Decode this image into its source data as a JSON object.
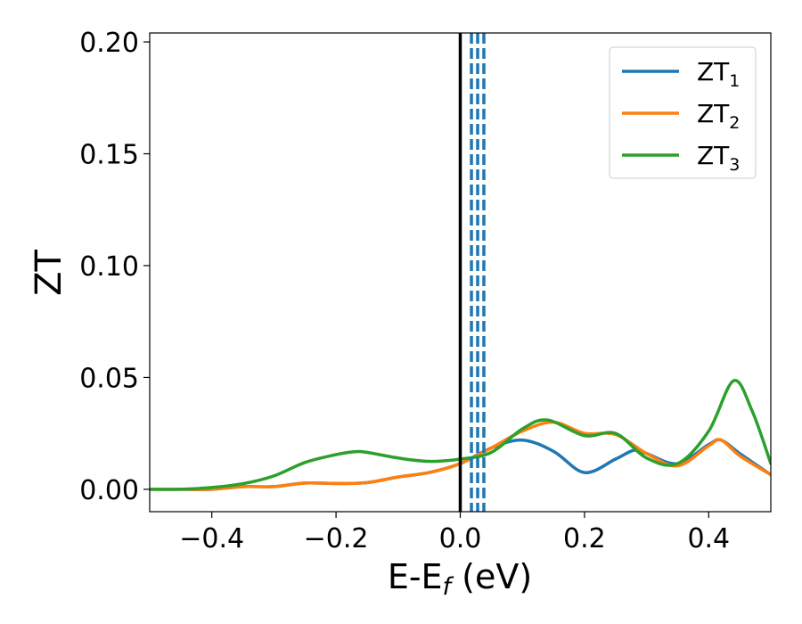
{
  "chart_data": {
    "type": "line",
    "title": "",
    "xlabel_main": "E-E",
    "xlabel_sub": "f",
    "xlabel_unit": " (eV)",
    "ylabel": "ZT",
    "xlim": [
      -0.5,
      0.5
    ],
    "ylim": [
      -0.01,
      0.204
    ],
    "xticks": [
      -0.4,
      -0.2,
      0.0,
      0.2,
      0.4
    ],
    "xtick_labels": [
      "−0.4",
      "−0.2",
      "0.0",
      "0.2",
      "0.4"
    ],
    "yticks": [
      0.0,
      0.05,
      0.1,
      0.15,
      0.2
    ],
    "ytick_labels": [
      "0.00",
      "0.05",
      "0.10",
      "0.15",
      "0.20"
    ],
    "grid": false,
    "legend_position": "top-right",
    "vertical_lines": [
      {
        "x": 0.0,
        "style": "solid",
        "color": "#000000"
      },
      {
        "x": 0.018,
        "style": "dashed",
        "color": "#1f77b4"
      },
      {
        "x": 0.028,
        "style": "dashed",
        "color": "#1f77b4"
      },
      {
        "x": 0.038,
        "style": "dashed",
        "color": "#1f77b4"
      }
    ],
    "series": [
      {
        "name": "ZT",
        "subscript": "1",
        "color": "#1f77b4",
        "x": [
          -0.5,
          -0.45,
          -0.4,
          -0.35,
          -0.3,
          -0.25,
          -0.2,
          -0.15,
          -0.1,
          -0.05,
          0.0,
          0.05,
          0.1,
          0.15,
          0.2,
          0.25,
          0.28,
          0.3,
          0.35,
          0.4,
          0.42,
          0.45,
          0.5
        ],
        "y": [
          0.0,
          0.0,
          0.0,
          0.0012,
          0.0012,
          0.0028,
          0.0026,
          0.003,
          0.0055,
          0.0075,
          0.0115,
          0.0185,
          0.022,
          0.017,
          0.0075,
          0.0135,
          0.0175,
          0.016,
          0.0115,
          0.02,
          0.022,
          0.016,
          0.0065
        ]
      },
      {
        "name": "ZT",
        "subscript": "2",
        "color": "#ff7f0e",
        "x": [
          -0.5,
          -0.45,
          -0.4,
          -0.35,
          -0.3,
          -0.25,
          -0.2,
          -0.15,
          -0.1,
          -0.05,
          0.0,
          0.05,
          0.1,
          0.15,
          0.2,
          0.25,
          0.3,
          0.35,
          0.4,
          0.42,
          0.45,
          0.5
        ],
        "y": [
          0.0,
          0.0,
          0.0,
          0.0012,
          0.0012,
          0.0028,
          0.0026,
          0.003,
          0.0055,
          0.0075,
          0.0115,
          0.0185,
          0.026,
          0.03,
          0.025,
          0.0245,
          0.016,
          0.0105,
          0.0195,
          0.022,
          0.015,
          0.0065
        ]
      },
      {
        "name": "ZT",
        "subscript": "3",
        "color": "#2ca02c",
        "x": [
          -0.5,
          -0.45,
          -0.4,
          -0.35,
          -0.3,
          -0.25,
          -0.2,
          -0.17,
          -0.15,
          -0.1,
          -0.05,
          0.0,
          0.05,
          0.1,
          0.14,
          0.2,
          0.25,
          0.3,
          0.35,
          0.4,
          0.44,
          0.47,
          0.5
        ],
        "y": [
          0.0,
          0.0,
          0.0008,
          0.0025,
          0.006,
          0.012,
          0.0155,
          0.0168,
          0.0165,
          0.014,
          0.0125,
          0.0135,
          0.0165,
          0.027,
          0.031,
          0.024,
          0.025,
          0.014,
          0.0115,
          0.026,
          0.0485,
          0.035,
          0.0115
        ]
      }
    ]
  }
}
